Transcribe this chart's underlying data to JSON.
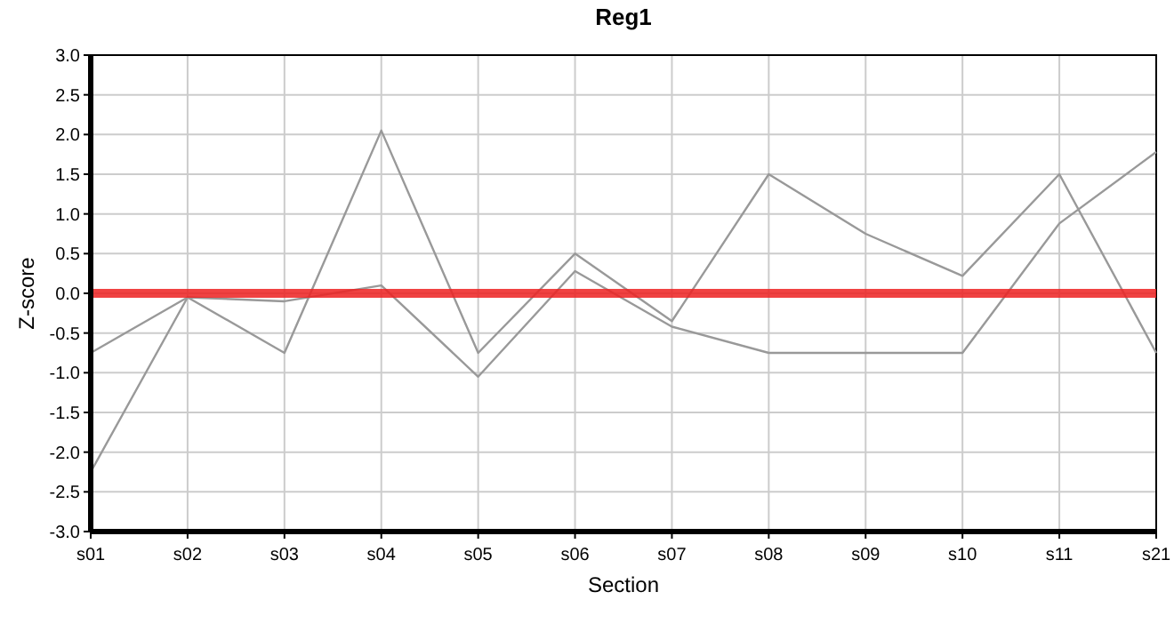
{
  "chart_data": {
    "type": "line",
    "title": "Reg1",
    "xlabel": "Section",
    "ylabel": "Z-score",
    "categories": [
      "s01",
      "s02",
      "s03",
      "s04",
      "s05",
      "s06",
      "s07",
      "s08",
      "s09",
      "s10",
      "s11",
      "s21"
    ],
    "series": [
      {
        "color": "#999999",
        "values": [
          -0.75,
          -0.05,
          -0.75,
          2.05,
          -0.75,
          0.5,
          -0.35,
          1.5,
          0.75,
          0.22,
          1.5,
          -0.75
        ]
      },
      {
        "color": "#999999",
        "values": [
          -2.25,
          -0.05,
          -0.1,
          0.1,
          -1.05,
          0.28,
          -0.42,
          -0.75,
          -0.75,
          -0.75,
          0.88,
          1.78
        ]
      }
    ],
    "ylim": [
      -3,
      3
    ],
    "yticks": [
      {
        "value": -3,
        "label": "-3.0"
      },
      {
        "value": -2.5,
        "label": "-2.5"
      },
      {
        "value": -2,
        "label": "-2.0"
      },
      {
        "value": -1.5,
        "label": "-1.5"
      },
      {
        "value": -1,
        "label": "-1.0"
      },
      {
        "value": -0.5,
        "label": "-0.5"
      },
      {
        "value": 0,
        "label": "0.0"
      },
      {
        "value": 0.5,
        "label": "0.5"
      },
      {
        "value": 1,
        "label": "1.0"
      },
      {
        "value": 1.5,
        "label": "1.5"
      },
      {
        "value": 2,
        "label": "2.0"
      },
      {
        "value": 2.5,
        "label": "2.5"
      },
      {
        "value": 3,
        "label": "3.0"
      }
    ],
    "grid": true,
    "ref_lines": [
      {
        "axis": "y",
        "value": 0,
        "color": "#ee2222"
      }
    ]
  }
}
